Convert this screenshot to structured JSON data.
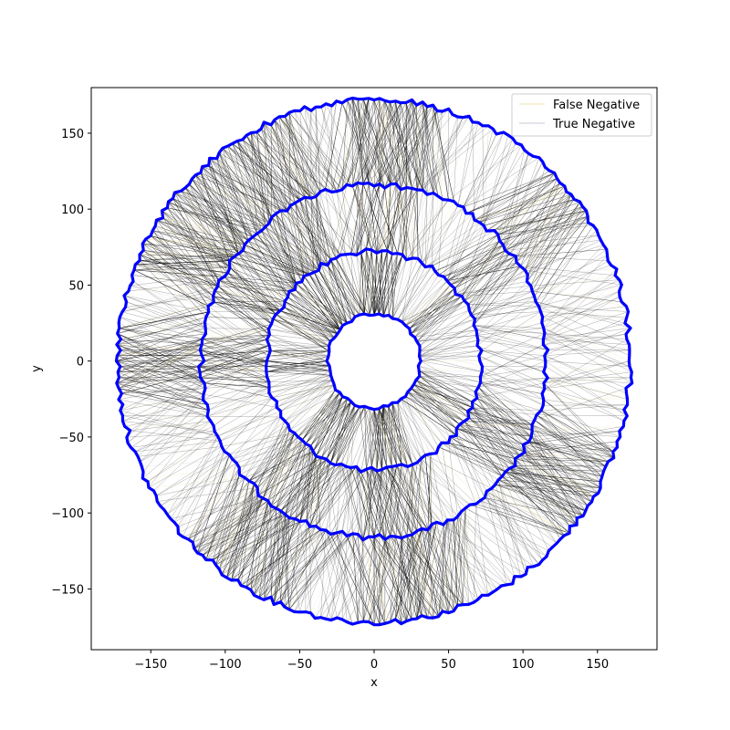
{
  "chart_data": {
    "type": "line",
    "title": "",
    "xlabel": "x",
    "ylabel": "y",
    "xlim": [
      -190,
      190
    ],
    "ylim": [
      -190,
      180
    ],
    "x_ticks": [
      -150,
      -100,
      -50,
      0,
      50,
      100,
      150
    ],
    "y_ticks": [
      -150,
      -100,
      -50,
      0,
      50,
      100,
      150
    ],
    "x_tick_labels": [
      "−150",
      "−100",
      "−50",
      "0",
      "50",
      "100",
      "150"
    ],
    "y_tick_labels": [
      "−150",
      "−100",
      "−50",
      "0",
      "50",
      "100",
      "150"
    ],
    "grid": false,
    "legend_position": "top-right",
    "rings": [
      {
        "radius": 31,
        "color": "#0000ff"
      },
      {
        "radius": 72,
        "color": "#0000ff"
      },
      {
        "radius": 116,
        "color": "#0000ff"
      },
      {
        "radius": 172,
        "color": "#0000ff"
      }
    ],
    "series": [
      {
        "name": "False Negative",
        "color": "#e8d89a"
      },
      {
        "name": "True Negative",
        "color": "#b9b9c8"
      }
    ],
    "edge_color": "#000000"
  }
}
